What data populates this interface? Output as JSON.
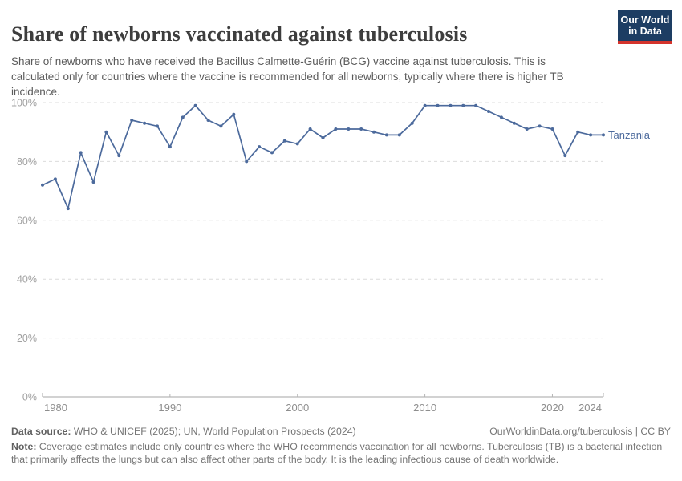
{
  "header": {
    "title": "Share of newborns vaccinated against tuberculosis",
    "subtitle": "Share of newborns who have received the Bacillus Calmette-Guérin (BCG) vaccine against tuberculosis. This is calculated only for countries where the vaccine is recommended for all newborns, typically where there is higher TB incidence.",
    "logo": {
      "line1": "Our World",
      "line2": "in Data",
      "bg": "#1d3d63",
      "accent": "#d4342c"
    }
  },
  "chart_data": {
    "type": "line",
    "title": "Share of newborns vaccinated against tuberculosis",
    "xlabel": "",
    "ylabel": "",
    "xlim": [
      1980,
      2024
    ],
    "ylim": [
      0,
      100
    ],
    "grid": "horizontal-dashed",
    "legend_position": "end-of-line",
    "x": [
      1980,
      1981,
      1982,
      1983,
      1984,
      1985,
      1986,
      1987,
      1988,
      1989,
      1990,
      1991,
      1992,
      1993,
      1994,
      1995,
      1996,
      1997,
      1998,
      1999,
      2000,
      2001,
      2002,
      2003,
      2004,
      2005,
      2006,
      2007,
      2008,
      2009,
      2010,
      2011,
      2012,
      2013,
      2014,
      2015,
      2016,
      2017,
      2018,
      2019,
      2020,
      2021,
      2022,
      2023,
      2024
    ],
    "series": [
      {
        "name": "Tanzania",
        "color": "#4C6A9C",
        "values": [
          72,
          74,
          64,
          83,
          73,
          90,
          82,
          94,
          93,
          92,
          85,
          95,
          99,
          94,
          92,
          96,
          80,
          85,
          83,
          87,
          86,
          91,
          88,
          91,
          91,
          91,
          90,
          89,
          89,
          93,
          99,
          99,
          99,
          99,
          99,
          97,
          95,
          93,
          91,
          92,
          91,
          82,
          90,
          89,
          89
        ]
      }
    ],
    "x_ticks": [
      {
        "value": 1980,
        "label": "1980"
      },
      {
        "value": 1990,
        "label": "1990"
      },
      {
        "value": 2000,
        "label": "2000"
      },
      {
        "value": 2010,
        "label": "2010"
      },
      {
        "value": 2020,
        "label": "2020"
      },
      {
        "value": 2024,
        "label": "2024"
      }
    ],
    "y_ticks": [
      {
        "value": 0,
        "label": "0%"
      },
      {
        "value": 20,
        "label": "20%"
      },
      {
        "value": 40,
        "label": "40%"
      },
      {
        "value": 60,
        "label": "60%"
      },
      {
        "value": 80,
        "label": "80%"
      },
      {
        "value": 100,
        "label": "100%"
      }
    ],
    "colors": {
      "gridline": "#dcdcdc",
      "axis": "#a5a5a5",
      "tick": "#b5b5b5",
      "y_label": "#a1a1a1",
      "x_label": "#8e8e8e"
    }
  },
  "footer": {
    "source_label": "Data source:",
    "source_text": " WHO & UNICEF (2025); UN, World Population Prospects (2024)",
    "link": "OurWorldinData.org/tuberculosis | CC BY",
    "note_label": "Note:",
    "note_text": " Coverage estimates include only countries where the WHO recommends vaccination for all newborns. Tuberculosis (TB) is a bacterial infection that primarily affects the lungs but can also affect other parts of the body. It is the leading infectious cause of death worldwide."
  }
}
